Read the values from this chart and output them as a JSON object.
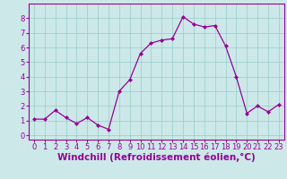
{
  "x": [
    0,
    1,
    2,
    3,
    4,
    5,
    6,
    7,
    8,
    9,
    10,
    11,
    12,
    13,
    14,
    15,
    16,
    17,
    18,
    19,
    20,
    21,
    22,
    23
  ],
  "y": [
    1.1,
    1.1,
    1.7,
    1.2,
    0.8,
    1.2,
    0.7,
    0.4,
    3.0,
    3.8,
    5.6,
    6.3,
    6.5,
    6.6,
    8.1,
    7.6,
    7.4,
    7.5,
    6.1,
    4.0,
    1.5,
    2.0,
    1.6,
    2.1
  ],
  "line_color": "#990099",
  "marker": "D",
  "marker_size": 2,
  "bg_color": "#cce8e8",
  "grid_color": "#99cccc",
  "xlabel": "Windchill (Refroidissement éolien,°C)",
  "xlabel_color": "#990099",
  "xlim": [
    -0.5,
    23.5
  ],
  "ylim": [
    -0.3,
    9.0
  ],
  "yticks": [
    0,
    1,
    2,
    3,
    4,
    5,
    6,
    7,
    8
  ],
  "xticks": [
    0,
    1,
    2,
    3,
    4,
    5,
    6,
    7,
    8,
    9,
    10,
    11,
    12,
    13,
    14,
    15,
    16,
    17,
    18,
    19,
    20,
    21,
    22,
    23
  ],
  "tick_color": "#990099",
  "tick_fontsize": 6,
  "xlabel_fontsize": 7.5,
  "spine_color": "#990099",
  "title_color": "#990099"
}
